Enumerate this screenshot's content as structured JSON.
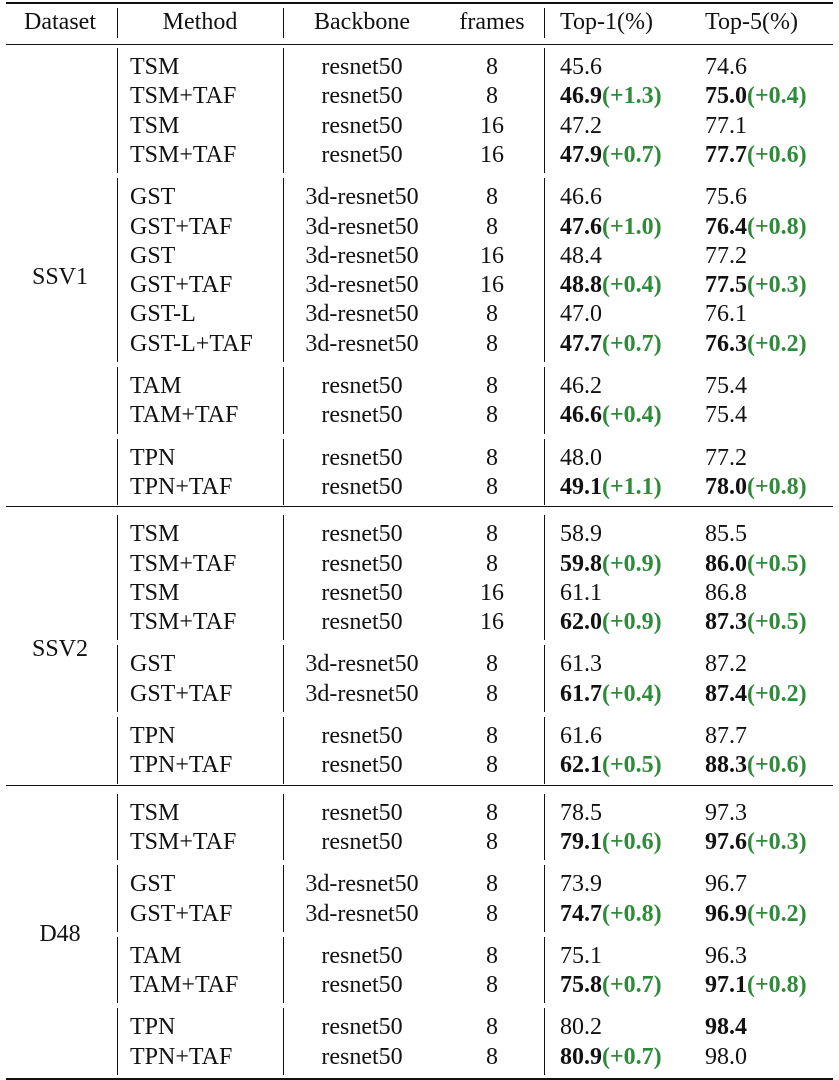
{
  "headers": [
    "Dataset",
    "Method",
    "Backbone",
    "frames",
    "Top-1(%)",
    "Top-5(%)"
  ],
  "colors": {
    "delta": "#2e8b3a",
    "text": "#111111"
  },
  "datasets": [
    {
      "name": "SSV1",
      "groups": [
        {
          "rows": [
            {
              "method": "TSM",
              "backbone": "resnet50",
              "frames": "8",
              "top1": "45.6",
              "top1_bold": false,
              "top1_delta": "",
              "top5": "74.6",
              "top5_bold": false,
              "top5_delta": ""
            },
            {
              "method": "TSM+TAF",
              "backbone": "resnet50",
              "frames": "8",
              "top1": "46.9",
              "top1_bold": true,
              "top1_delta": "(+1.3)",
              "top5": "75.0",
              "top5_bold": true,
              "top5_delta": "(+0.4)"
            },
            {
              "method": "TSM",
              "backbone": "resnet50",
              "frames": "16",
              "top1": "47.2",
              "top1_bold": false,
              "top1_delta": "",
              "top5": "77.1",
              "top5_bold": false,
              "top5_delta": ""
            },
            {
              "method": "TSM+TAF",
              "backbone": "resnet50",
              "frames": "16",
              "top1": "47.9",
              "top1_bold": true,
              "top1_delta": "(+0.7)",
              "top5": "77.7",
              "top5_bold": true,
              "top5_delta": "(+0.6)"
            }
          ]
        },
        {
          "rows": [
            {
              "method": "GST",
              "backbone": "3d-resnet50",
              "frames": "8",
              "top1": "46.6",
              "top1_bold": false,
              "top1_delta": "",
              "top5": "75.6",
              "top5_bold": false,
              "top5_delta": ""
            },
            {
              "method": "GST+TAF",
              "backbone": "3d-resnet50",
              "frames": "8",
              "top1": "47.6",
              "top1_bold": true,
              "top1_delta": "(+1.0)",
              "top5": "76.4",
              "top5_bold": true,
              "top5_delta": "(+0.8)"
            },
            {
              "method": "GST",
              "backbone": "3d-resnet50",
              "frames": "16",
              "top1": "48.4",
              "top1_bold": false,
              "top1_delta": "",
              "top5": "77.2",
              "top5_bold": false,
              "top5_delta": ""
            },
            {
              "method": "GST+TAF",
              "backbone": "3d-resnet50",
              "frames": "16",
              "top1": "48.8",
              "top1_bold": true,
              "top1_delta": "(+0.4)",
              "top5": "77.5",
              "top5_bold": true,
              "top5_delta": "(+0.3)"
            },
            {
              "method": "GST-L",
              "backbone": "3d-resnet50",
              "frames": "8",
              "top1": "47.0",
              "top1_bold": false,
              "top1_delta": "",
              "top5": "76.1",
              "top5_bold": false,
              "top5_delta": ""
            },
            {
              "method": "GST-L+TAF",
              "backbone": "3d-resnet50",
              "frames": "8",
              "top1": "47.7",
              "top1_bold": true,
              "top1_delta": "(+0.7)",
              "top5": "76.3",
              "top5_bold": true,
              "top5_delta": "(+0.2)"
            }
          ]
        },
        {
          "rows": [
            {
              "method": "TAM",
              "backbone": "resnet50",
              "frames": "8",
              "top1": "46.2",
              "top1_bold": false,
              "top1_delta": "",
              "top5": "75.4",
              "top5_bold": false,
              "top5_delta": ""
            },
            {
              "method": "TAM+TAF",
              "backbone": "resnet50",
              "frames": "8",
              "top1": "46.6",
              "top1_bold": true,
              "top1_delta": "(+0.4)",
              "top5": "75.4",
              "top5_bold": false,
              "top5_delta": ""
            }
          ]
        },
        {
          "rows": [
            {
              "method": "TPN",
              "backbone": "resnet50",
              "frames": "8",
              "top1": "48.0",
              "top1_bold": false,
              "top1_delta": "",
              "top5": "77.2",
              "top5_bold": false,
              "top5_delta": ""
            },
            {
              "method": "TPN+TAF",
              "backbone": "resnet50",
              "frames": "8",
              "top1": "49.1",
              "top1_bold": true,
              "top1_delta": "(+1.1)",
              "top5": "78.0",
              "top5_bold": true,
              "top5_delta": "(+0.8)"
            }
          ]
        }
      ]
    },
    {
      "name": "SSV2",
      "groups": [
        {
          "rows": [
            {
              "method": "TSM",
              "backbone": "resnet50",
              "frames": "8",
              "top1": "58.9",
              "top1_bold": false,
              "top1_delta": "",
              "top5": "85.5",
              "top5_bold": false,
              "top5_delta": ""
            },
            {
              "method": "TSM+TAF",
              "backbone": "resnet50",
              "frames": "8",
              "top1": "59.8",
              "top1_bold": true,
              "top1_delta": "(+0.9)",
              "top5": "86.0",
              "top5_bold": true,
              "top5_delta": "(+0.5)"
            },
            {
              "method": "TSM",
              "backbone": "resnet50",
              "frames": "16",
              "top1": "61.1",
              "top1_bold": false,
              "top1_delta": "",
              "top5": "86.8",
              "top5_bold": false,
              "top5_delta": ""
            },
            {
              "method": "TSM+TAF",
              "backbone": "resnet50",
              "frames": "16",
              "top1": "62.0",
              "top1_bold": true,
              "top1_delta": "(+0.9)",
              "top5": "87.3",
              "top5_bold": true,
              "top5_delta": "(+0.5)"
            }
          ]
        },
        {
          "rows": [
            {
              "method": "GST",
              "backbone": "3d-resnet50",
              "frames": "8",
              "top1": "61.3",
              "top1_bold": false,
              "top1_delta": "",
              "top5": "87.2",
              "top5_bold": false,
              "top5_delta": ""
            },
            {
              "method": "GST+TAF",
              "backbone": "3d-resnet50",
              "frames": "8",
              "top1": "61.7",
              "top1_bold": true,
              "top1_delta": "(+0.4)",
              "top5": "87.4",
              "top5_bold": true,
              "top5_delta": "(+0.2)"
            }
          ]
        },
        {
          "rows": [
            {
              "method": "TPN",
              "backbone": "resnet50",
              "frames": "8",
              "top1": "61.6",
              "top1_bold": false,
              "top1_delta": "",
              "top5": "87.7",
              "top5_bold": false,
              "top5_delta": ""
            },
            {
              "method": "TPN+TAF",
              "backbone": "resnet50",
              "frames": "8",
              "top1": "62.1",
              "top1_bold": true,
              "top1_delta": "(+0.5)",
              "top5": "88.3",
              "top5_bold": true,
              "top5_delta": "(+0.6)"
            }
          ]
        }
      ]
    },
    {
      "name": "D48",
      "groups": [
        {
          "rows": [
            {
              "method": "TSM",
              "backbone": "resnet50",
              "frames": "8",
              "top1": "78.5",
              "top1_bold": false,
              "top1_delta": "",
              "top5": "97.3",
              "top5_bold": false,
              "top5_delta": ""
            },
            {
              "method": "TSM+TAF",
              "backbone": "resnet50",
              "frames": "8",
              "top1": "79.1",
              "top1_bold": true,
              "top1_delta": "(+0.6)",
              "top5": "97.6",
              "top5_bold": true,
              "top5_delta": "(+0.3)"
            }
          ]
        },
        {
          "rows": [
            {
              "method": "GST",
              "backbone": "3d-resnet50",
              "frames": "8",
              "top1": "73.9",
              "top1_bold": false,
              "top1_delta": "",
              "top5": "96.7",
              "top5_bold": false,
              "top5_delta": ""
            },
            {
              "method": "GST+TAF",
              "backbone": "3d-resnet50",
              "frames": "8",
              "top1": "74.7",
              "top1_bold": true,
              "top1_delta": "(+0.8)",
              "top5": "96.9",
              "top5_bold": true,
              "top5_delta": "(+0.2)"
            }
          ]
        },
        {
          "rows": [
            {
              "method": "TAM",
              "backbone": "resnet50",
              "frames": "8",
              "top1": "75.1",
              "top1_bold": false,
              "top1_delta": "",
              "top5": "96.3",
              "top5_bold": false,
              "top5_delta": ""
            },
            {
              "method": "TAM+TAF",
              "backbone": "resnet50",
              "frames": "8",
              "top1": "75.8",
              "top1_bold": true,
              "top1_delta": "(+0.7)",
              "top5": "97.1",
              "top5_bold": true,
              "top5_delta": "(+0.8)"
            }
          ]
        },
        {
          "rows": [
            {
              "method": "TPN",
              "backbone": "resnet50",
              "frames": "8",
              "top1": "80.2",
              "top1_bold": false,
              "top1_delta": "",
              "top5": "98.4",
              "top5_bold": true,
              "top5_delta": ""
            },
            {
              "method": "TPN+TAF",
              "backbone": "resnet50",
              "frames": "8",
              "top1": "80.9",
              "top1_bold": true,
              "top1_delta": "(+0.7)",
              "top5": "98.0",
              "top5_bold": false,
              "top5_delta": ""
            }
          ]
        }
      ]
    }
  ]
}
